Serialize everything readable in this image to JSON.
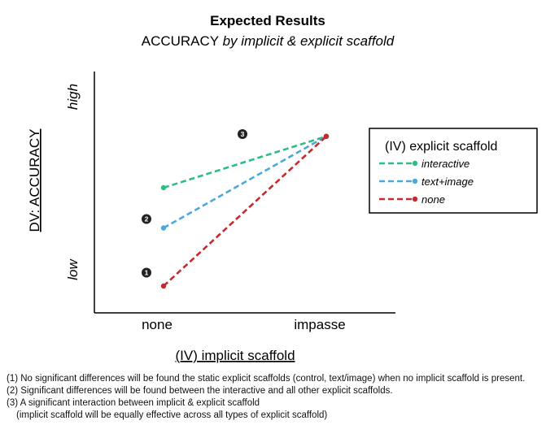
{
  "chart_data": {
    "type": "line",
    "title": "Expected Results",
    "subtitle_main": "ACCURACY",
    "subtitle_italic": "by implicit & explicit scaffold",
    "xlabel": "(IV) implicit scaffold",
    "ylabel": "DV: ACCURACY",
    "x_tick_labels": [
      "none",
      "impasse"
    ],
    "y_tick_labels": {
      "low": "low",
      "high": "high"
    },
    "ylim": [
      0,
      100
    ],
    "legend_title": "(IV) explicit scaffold",
    "legend_position": "right",
    "grid": false,
    "series": [
      {
        "name": "interactive",
        "color": "#2ebd82",
        "values": [
          56,
          79
        ]
      },
      {
        "name": "text+image",
        "color": "#4aa8dd",
        "values": [
          38,
          79
        ]
      },
      {
        "name": "none",
        "color": "#c72a2a",
        "values": [
          12,
          79
        ]
      }
    ],
    "annotations": [
      {
        "label": "1",
        "x": "none",
        "y": 18
      },
      {
        "label": "2",
        "x": "none",
        "y": 42
      },
      {
        "label": "3",
        "x": "between",
        "y": 80
      }
    ]
  },
  "notes": [
    "(1) No significant differences will be found the static explicit scaffolds (control, text/image) when no implicit scaffold is present.",
    "(2) Significant differences will be found between the interactive and all other explicit scaffolds.",
    "(3) A significant interaction between implicit & explicit scaffold",
    "(implicit scaffold will be equally effective across all types of explicit scaffold)"
  ]
}
